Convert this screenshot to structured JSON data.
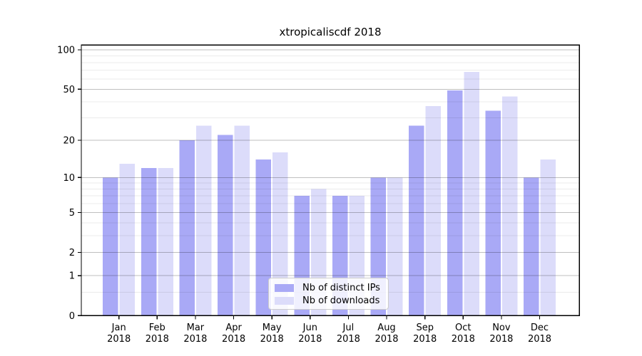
{
  "chart_data": {
    "type": "bar",
    "title": "xtropicaliscdf 2018",
    "year_label": "2018",
    "categories": [
      "Jan",
      "Feb",
      "Mar",
      "Apr",
      "May",
      "Jun",
      "Jul",
      "Aug",
      "Sep",
      "Oct",
      "Nov",
      "Dec"
    ],
    "series": [
      {
        "name": "Nb of distinct IPs",
        "color": "#a9a9f6",
        "values": [
          10,
          12,
          20,
          22,
          14,
          7,
          7,
          10,
          26,
          49,
          34,
          10
        ]
      },
      {
        "name": "Nb of downloads",
        "color": "#dcdcfa",
        "values": [
          13,
          12,
          26,
          26,
          16,
          8,
          7,
          10,
          37,
          68,
          44,
          14
        ]
      }
    ],
    "xlabel": "",
    "ylabel": "",
    "yscale": "log1p",
    "ylim": [
      0,
      108.7
    ],
    "yticks": [
      0,
      1,
      2,
      5,
      10,
      20,
      50,
      100
    ],
    "yminorticks": [
      0.5,
      3,
      4,
      6,
      7,
      8,
      9,
      30,
      40,
      60,
      70,
      80,
      90
    ],
    "grid": "on",
    "legend_position": "lower center",
    "major_grid_color": "rgba(0,0,0,0.25)",
    "minor_grid_color": "rgba(0,0,0,0.08)",
    "spine_color": "#000000"
  }
}
